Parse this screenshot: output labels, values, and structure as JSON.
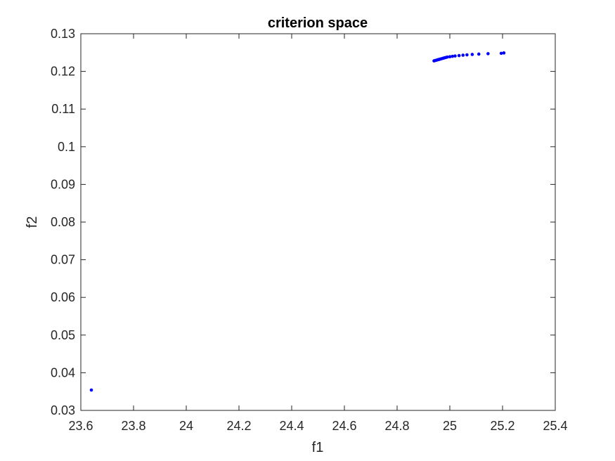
{
  "chart_data": {
    "type": "scatter",
    "title": "criterion space",
    "xlabel": "f1",
    "ylabel": "f2",
    "xlim": [
      23.6,
      25.4
    ],
    "ylim": [
      0.03,
      0.13
    ],
    "xticks": [
      "23.6",
      "23.8",
      "24",
      "24.2",
      "24.4",
      "24.6",
      "24.8",
      "25",
      "25.2",
      "25.4"
    ],
    "yticks": [
      "0.03",
      "0.04",
      "0.05",
      "0.06",
      "0.07",
      "0.08",
      "0.09",
      "0.1",
      "0.11",
      "0.12",
      "0.13"
    ],
    "grid": false,
    "marker_color": "#0000ff",
    "points": [
      {
        "x": 23.64,
        "y": 0.0354
      },
      {
        "x": 24.94,
        "y": 0.1228
      },
      {
        "x": 24.945,
        "y": 0.1229
      },
      {
        "x": 24.95,
        "y": 0.123
      },
      {
        "x": 24.955,
        "y": 0.1231
      },
      {
        "x": 24.96,
        "y": 0.1232
      },
      {
        "x": 24.965,
        "y": 0.1233
      },
      {
        "x": 24.97,
        "y": 0.1234
      },
      {
        "x": 24.975,
        "y": 0.1235
      },
      {
        "x": 24.98,
        "y": 0.1236
      },
      {
        "x": 24.985,
        "y": 0.1237
      },
      {
        "x": 24.99,
        "y": 0.1238
      },
      {
        "x": 25.0,
        "y": 0.1239
      },
      {
        "x": 25.01,
        "y": 0.124
      },
      {
        "x": 25.02,
        "y": 0.1241
      },
      {
        "x": 25.035,
        "y": 0.1242
      },
      {
        "x": 25.05,
        "y": 0.1243
      },
      {
        "x": 25.065,
        "y": 0.1244
      },
      {
        "x": 25.085,
        "y": 0.1245
      },
      {
        "x": 25.11,
        "y": 0.1246
      },
      {
        "x": 25.145,
        "y": 0.1247
      },
      {
        "x": 25.195,
        "y": 0.1248
      },
      {
        "x": 25.205,
        "y": 0.1249
      }
    ]
  }
}
